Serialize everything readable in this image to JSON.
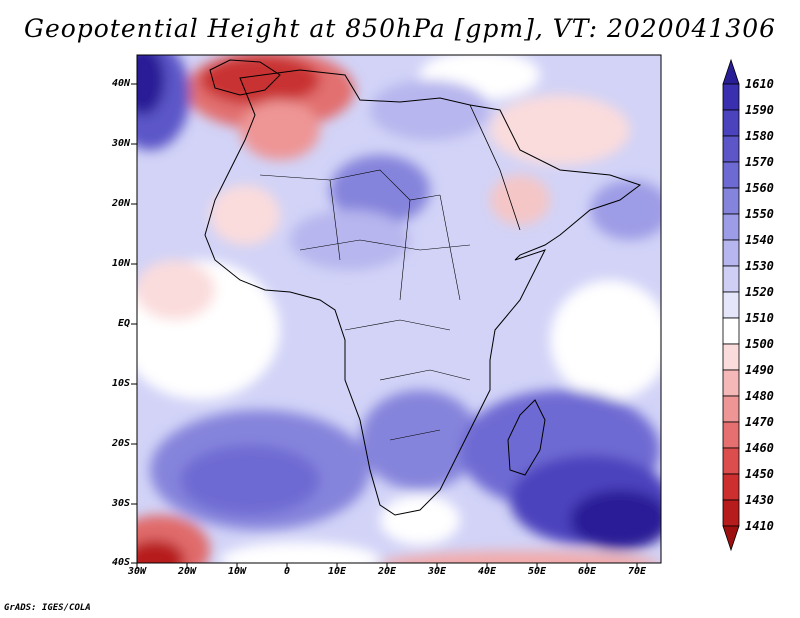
{
  "title": "Geopotential Height at 850hPa [gpm], VT: 2020041306",
  "credit": "GrADS: IGES/COLA",
  "map": {
    "lat_labels": [
      "40N",
      "30N",
      "20N",
      "10N",
      "EQ",
      "10S",
      "20S",
      "30S",
      "40S"
    ],
    "lon_labels": [
      "30W",
      "20W",
      "10W",
      "0",
      "10E",
      "20E",
      "30E",
      "40E",
      "50E",
      "60E",
      "70E"
    ],
    "lon_range": [
      -30,
      75
    ],
    "lat_range": [
      -40,
      45
    ]
  },
  "colorbar": {
    "labels": [
      "1610",
      "1590",
      "1580",
      "1570",
      "1560",
      "1550",
      "1540",
      "1530",
      "1520",
      "1510",
      "1500",
      "1490",
      "1480",
      "1470",
      "1460",
      "1450",
      "1430",
      "1410"
    ],
    "colors": [
      "#2a1e96",
      "#3a2fae",
      "#4b43bd",
      "#5c56c8",
      "#6e6ad3",
      "#8584dc",
      "#9d9ce6",
      "#b7b6ee",
      "#cfcff6",
      "#e6e6fb",
      "#ffffff",
      "#fbdcdc",
      "#f5b8b8",
      "#ee9595",
      "#e67070",
      "#dc4d4d",
      "#cd2e2e",
      "#b71c1c",
      "#9e1010"
    ]
  }
}
